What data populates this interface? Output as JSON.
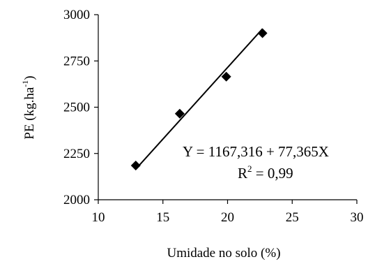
{
  "chart_data": {
    "type": "scatter",
    "xlabel": "Umidade no solo (%)",
    "ylabel_main": "PE (kg.ha",
    "ylabel_sup": "-1",
    "ylabel_close": ")",
    "xlim": [
      10,
      30
    ],
    "ylim": [
      2000,
      3000
    ],
    "x_ticks": [
      10,
      15,
      20,
      25,
      30
    ],
    "y_ticks": [
      2000,
      2250,
      2500,
      2750,
      3000
    ],
    "grid": false,
    "series": [
      {
        "points": [
          {
            "x": 12.9,
            "y": 2185
          },
          {
            "x": 16.3,
            "y": 2465
          },
          {
            "x": 19.9,
            "y": 2665
          },
          {
            "x": 22.7,
            "y": 2900
          }
        ],
        "trendline": {
          "intercept": 1167.316,
          "slope": 77.365
        }
      }
    ],
    "annotations": {
      "equation": "Y = 1167,316 + 77,365X",
      "r2_main": "R",
      "r2_sup": "2",
      "r2_value": " = 0,99"
    }
  }
}
